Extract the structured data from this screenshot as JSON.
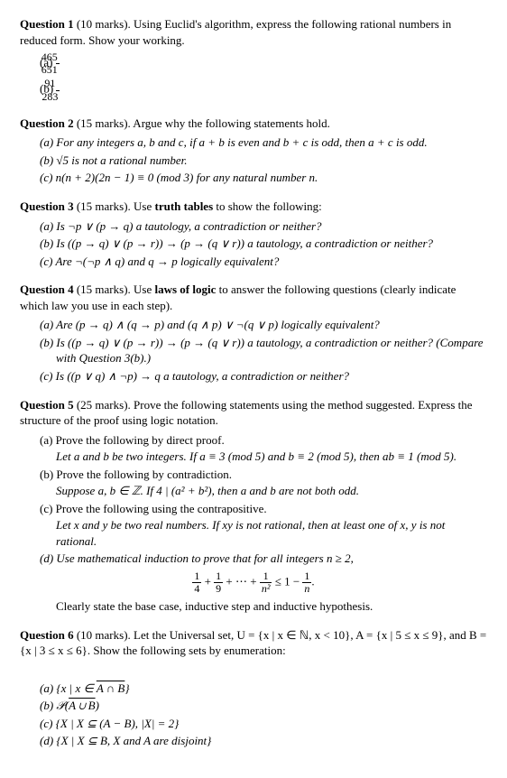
{
  "q1": {
    "head_bold": "Question 1",
    "head_rest": " (10 marks). Using Euclid's algorithm, express the following rational numbers in reduced form. Show your working.",
    "a_label": "(a)",
    "a_num": "465",
    "a_den": "651",
    "b_label": "(b)",
    "b_num": "91",
    "b_den": "283"
  },
  "q2": {
    "head_bold": "Question 2",
    "head_rest": " (15 marks). Argue why the following statements hold.",
    "a": "(a) For any integers a, b and c, if a + b is even and b + c is odd, then a + c is odd.",
    "b": "(b) √5 is not a rational number.",
    "c": "(c) n(n + 2)(2n − 1) ≡ 0 (mod 3) for any natural number n."
  },
  "q3": {
    "head_bold": "Question 3",
    "head_rest_1": " (15 marks). Use ",
    "head_bold2": "truth tables",
    "head_rest_2": " to show the following:",
    "a": "(a) Is ¬p ∨ (p → q) a tautology, a contradiction or neither?",
    "b": "(b) Is ((p → q) ∨ (p → r)) → (p → (q ∨ r)) a tautology, a contradiction or neither?",
    "c": "(c) Are ¬(¬p ∧ q) and q → p logically equivalent?"
  },
  "q4": {
    "head_bold": "Question 4",
    "head_rest_1": " (15 marks). Use ",
    "head_bold2": "laws of logic",
    "head_rest_2": " to answer the following questions (clearly indicate which law you use in each step).",
    "a": "(a) Are (p → q) ∧ (q → p) and (q ∧ p) ∨ ¬(q ∨ p) logically equivalent?",
    "b": "(b) Is ((p → q) ∨ (p → r)) → (p → (q ∨ r)) a tautology, a contradiction or neither? (Compare with Question 3(b).)",
    "c": "(c) Is ((p ∨ q) ∧ ¬p) → q a tautology, a contradiction or neither?"
  },
  "q5": {
    "head_bold": "Question 5",
    "head_rest": " (25 marks). Prove the following statements using the method suggested. Express the structure of the proof using logic notation.",
    "a": "(a) Prove the following by direct proof.",
    "a_sub": "Let a and b be two integers. If a ≡ 3 (mod 5) and b ≡ 2 (mod 5), then ab ≡ 1 (mod 5).",
    "b": "(b) Prove the following by contradiction.",
    "b_sub": "Suppose a, b ∈ ℤ. If 4 | (a² + b²), then a and b are not both odd.",
    "c": "(c) Prove the following using the contrapositive.",
    "c_sub": "Let x and y be two real numbers. If xy is not rational, then at least one of x, y is not rational.",
    "d": "(d) Use mathematical induction to prove that for all integers n ≥ 2,",
    "eq_lhs1_num": "1",
    "eq_lhs1_den": "4",
    "eq_lhs2_num": "1",
    "eq_lhs2_den": "9",
    "eq_dots": " + ⋯ + ",
    "eq_lhs3_num": "1",
    "eq_lhs3_den": "n²",
    "eq_mid": " ≤ 1 − ",
    "eq_rhs_num": "1",
    "eq_rhs_den": "n",
    "eq_period": ".",
    "d_sub": "Clearly state the base case, inductive step and inductive hypothesis."
  },
  "q6": {
    "head_bold": "Question 6",
    "head_rest": " (10 marks). Let the Universal set, U = {x | x ∈ ℕ, x < 10}, A = {x | 5 ≤ x ≤ 9}, and B = {x | 3 ≤ x ≤ 6}. Show the following sets by enumeration:",
    "a_pre": "(a) {x | x ∈ ",
    "a_over": "A ∩ B",
    "a_post": "}",
    "b_pre": "(b) 𝒫(",
    "b_over": "A ∪ B",
    "b_post": ")",
    "c": "(c) {X | X ⊆ (A − B), |X| = 2}",
    "d": "(d) {X | X ⊆ B, X and A are disjoint}"
  }
}
